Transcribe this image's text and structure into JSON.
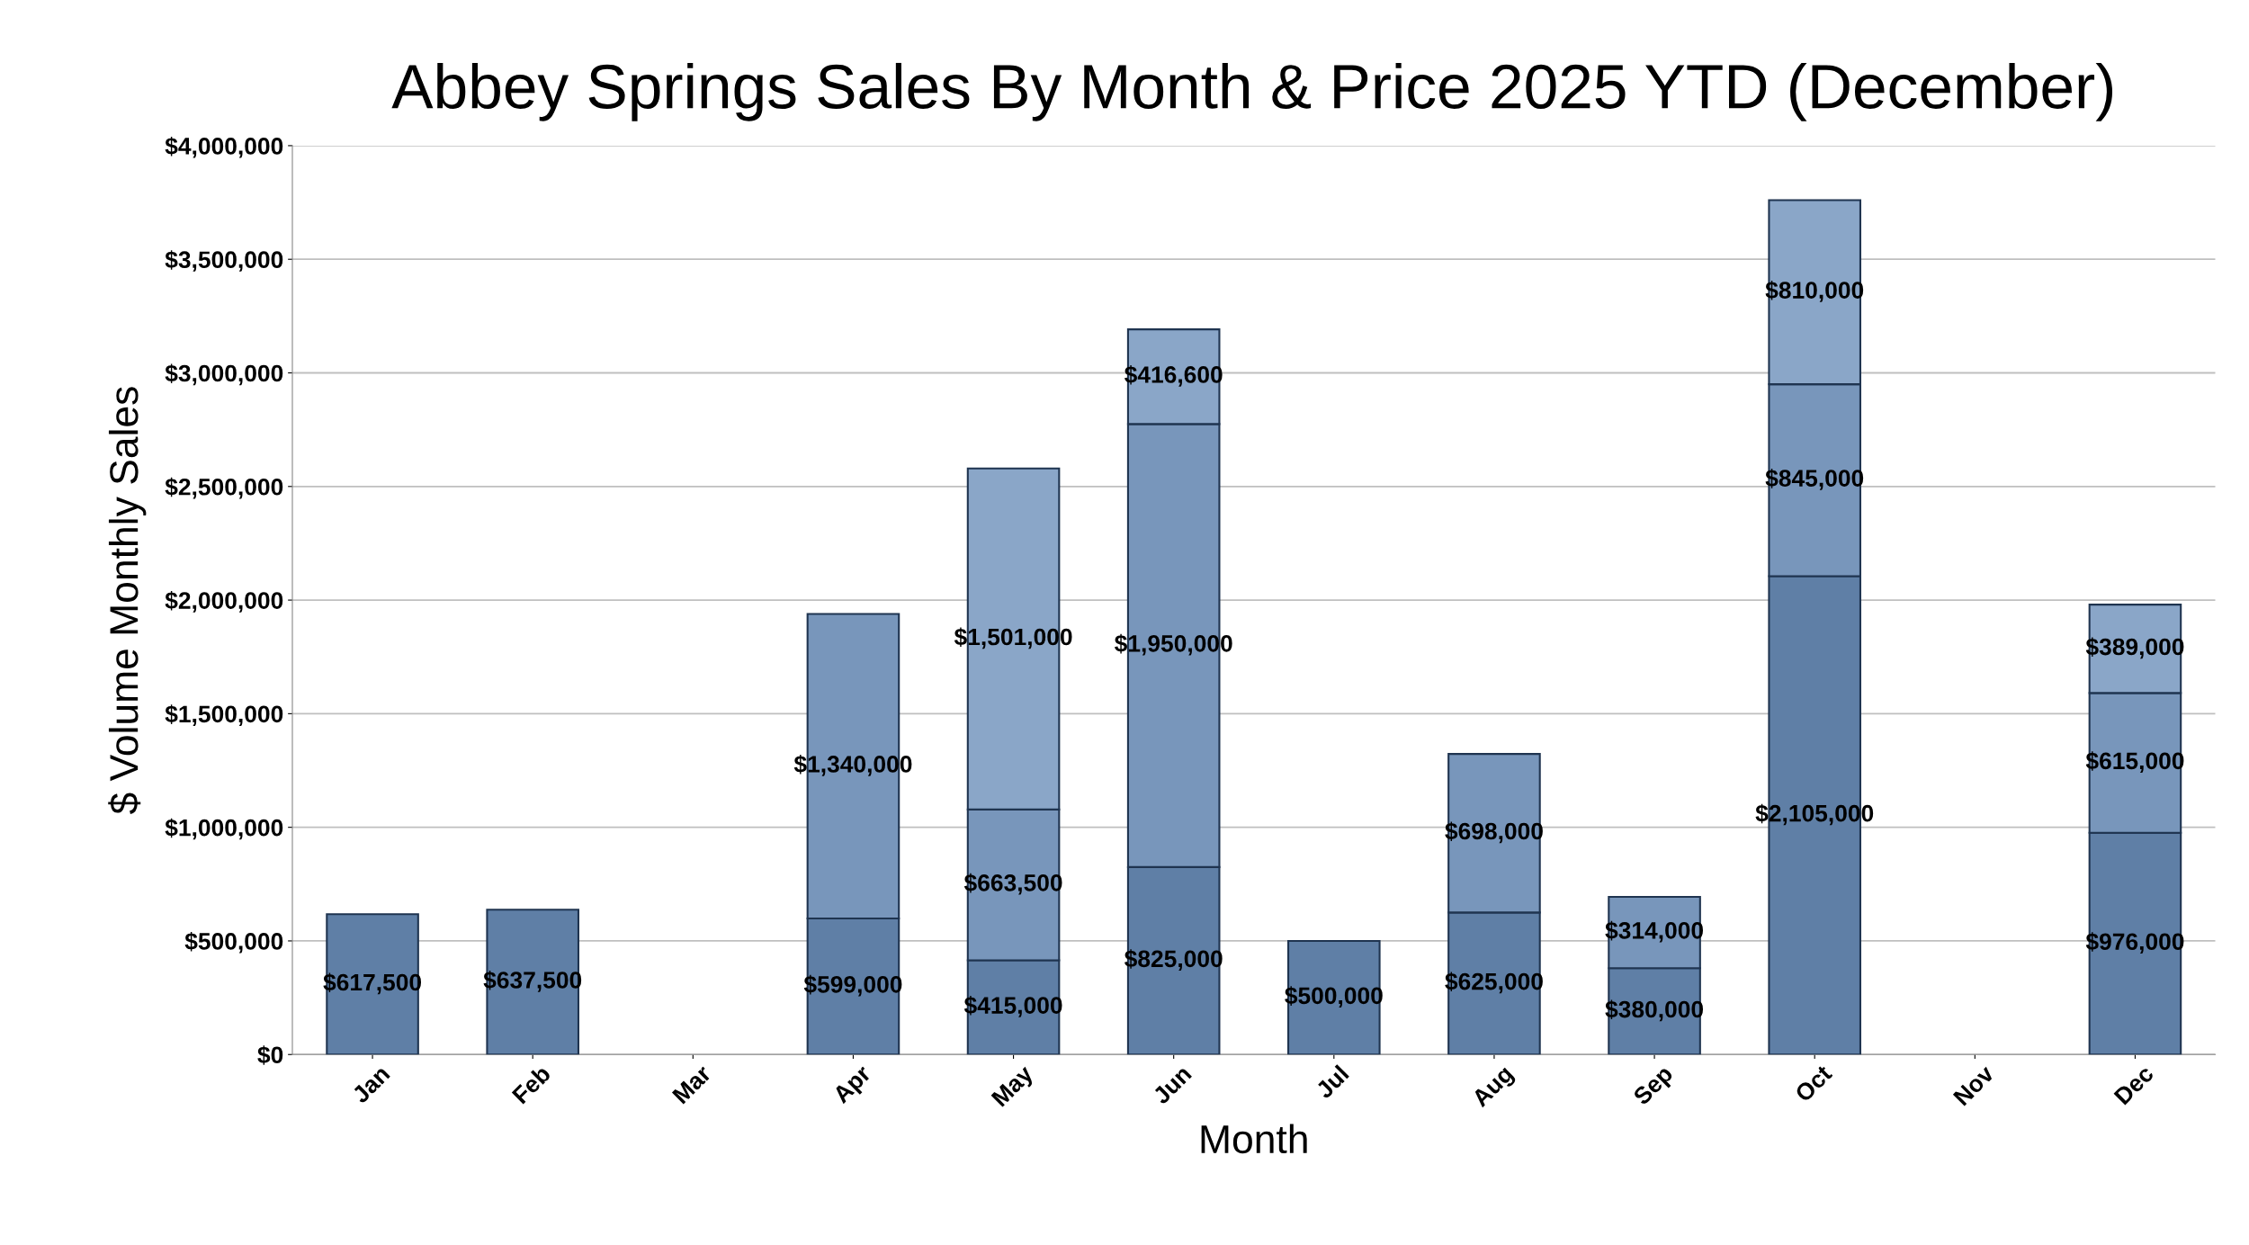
{
  "chart_data": {
    "type": "bar",
    "title": "Abbey Springs Sales By Month & Price 2025 YTD (December)",
    "xlabel": "Month",
    "ylabel": "$ Volume Monthly Sales",
    "categories": [
      "Jan",
      "Feb",
      "Mar",
      "Apr",
      "May",
      "Jun",
      "Jul",
      "Aug",
      "Sep",
      "Oct",
      "Nov",
      "Dec"
    ],
    "stacked": true,
    "series": [
      {
        "color": "#5f7fa6",
        "values": [
          617500,
          637500,
          null,
          599000,
          415000,
          825000,
          500000,
          625000,
          380000,
          2105000,
          null,
          976000
        ],
        "value_labels": [
          "$617,500",
          "$637,500",
          null,
          "$599,000",
          "$415,000",
          "$825,000",
          "$500,000",
          "$625,000",
          "$380,000",
          "$2,105,000",
          null,
          "$976,000"
        ]
      },
      {
        "color": "#7896bb",
        "values": [
          null,
          null,
          null,
          1340000,
          663500,
          1950000,
          null,
          698000,
          314000,
          845000,
          null,
          615000
        ],
        "value_labels": [
          null,
          null,
          null,
          "$1,340,000",
          "$663,500",
          "$1,950,000",
          null,
          "$698,000",
          "$314,000",
          "$845,000",
          null,
          "$615,000"
        ]
      },
      {
        "color": "#8aa6c8",
        "values": [
          null,
          null,
          null,
          null,
          1501000,
          416600,
          null,
          null,
          null,
          810000,
          null,
          389000
        ],
        "value_labels": [
          null,
          null,
          null,
          null,
          "$1,501,000",
          "$416,600",
          null,
          null,
          null,
          "$810,000",
          null,
          "$389,000"
        ]
      }
    ],
    "ylim": [
      0,
      4000000
    ],
    "yticks": [
      {
        "value": 0,
        "label": "$0"
      },
      {
        "value": 500000,
        "label": "$500,000"
      },
      {
        "value": 1000000,
        "label": "$1,000,000"
      },
      {
        "value": 1500000,
        "label": "$1,500,000"
      },
      {
        "value": 2000000,
        "label": "$2,000,000"
      },
      {
        "value": 2500000,
        "label": "$2,500,000"
      },
      {
        "value": 3000000,
        "label": "$3,000,000"
      },
      {
        "value": 3500000,
        "label": "$3,500,000"
      },
      {
        "value": 4000000,
        "label": "$4,000,000"
      }
    ],
    "grid": "y",
    "legend": false
  }
}
